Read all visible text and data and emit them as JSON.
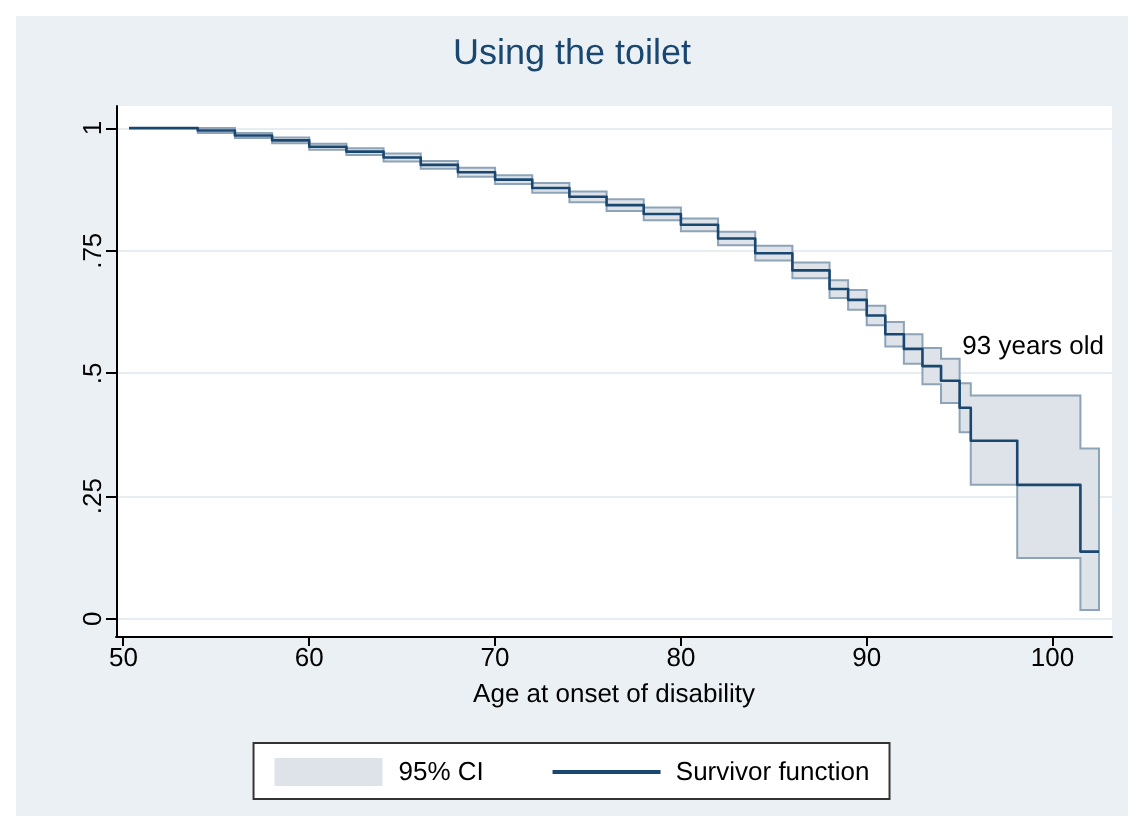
{
  "chart_data": {
    "type": "step",
    "title": "Using the toilet",
    "xlabel": "Age at onset of disability",
    "x": [
      50.3,
      52,
      54,
      56,
      58,
      60,
      62,
      64,
      66,
      68,
      70,
      72,
      74,
      76,
      78,
      80,
      82,
      84,
      86,
      88,
      89,
      90,
      91,
      92,
      93,
      94,
      95,
      95.6,
      98.1,
      101.5,
      102.5
    ],
    "series": [
      {
        "name": "Survivor function",
        "color": "#1a476f",
        "values": [
          1,
          1,
          0.995,
          0.985,
          0.975,
          0.962,
          0.952,
          0.94,
          0.925,
          0.91,
          0.895,
          0.878,
          0.86,
          0.843,
          0.825,
          0.803,
          0.775,
          0.745,
          0.71,
          0.672,
          0.65,
          0.618,
          0.58,
          0.55,
          0.515,
          0.485,
          0.43,
          0.363,
          0.273,
          0.137,
          0.137
        ],
        "lower": [
          1,
          1,
          0.99,
          0.98,
          0.969,
          0.956,
          0.945,
          0.932,
          0.917,
          0.901,
          0.886,
          0.868,
          0.849,
          0.831,
          0.812,
          0.79,
          0.761,
          0.73,
          0.694,
          0.654,
          0.63,
          0.598,
          0.555,
          0.52,
          0.478,
          0.44,
          0.38,
          0.273,
          0.124,
          0.018,
          0.018
        ],
        "upper": [
          1,
          1,
          1,
          0.99,
          0.981,
          0.968,
          0.959,
          0.948,
          0.933,
          0.919,
          0.904,
          0.888,
          0.871,
          0.855,
          0.838,
          0.816,
          0.789,
          0.76,
          0.726,
          0.69,
          0.67,
          0.638,
          0.605,
          0.58,
          0.552,
          0.53,
          0.48,
          0.455,
          0.455,
          0.347,
          0.347
        ]
      }
    ],
    "annotations": [
      "95% CI",
      "93 years old"
    ],
    "xlim": [
      49.6,
      103.2
    ],
    "xticks": [
      50,
      60,
      70,
      80,
      90,
      100
    ],
    "ylim": [
      -0.035,
      1.045
    ],
    "yticks": [
      {
        "value": 0,
        "label": "0"
      },
      {
        "value": 0.25,
        "label": ".25"
      },
      {
        "value": 0.5,
        "label": ".5"
      },
      {
        "value": 0.75,
        "label": ".75"
      },
      {
        "value": 1,
        "label": "1"
      }
    ],
    "grid": "y",
    "legend": "bottom",
    "marker": "none",
    "line_style": "solid"
  }
}
